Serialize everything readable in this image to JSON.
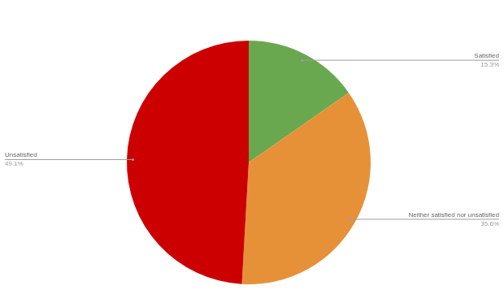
{
  "chart_data": {
    "type": "pie",
    "categories": [
      "Satisfied",
      "Neither satisfied nor unsatisfied",
      "Unsatisfied"
    ],
    "values": [
      15.3,
      35.6,
      49.1
    ],
    "value_labels": [
      "15.3%",
      "35.6%",
      "49.1%"
    ],
    "colors": [
      "#6aa84f",
      "#e69138",
      "#cc0000"
    ],
    "data_labels": true
  }
}
